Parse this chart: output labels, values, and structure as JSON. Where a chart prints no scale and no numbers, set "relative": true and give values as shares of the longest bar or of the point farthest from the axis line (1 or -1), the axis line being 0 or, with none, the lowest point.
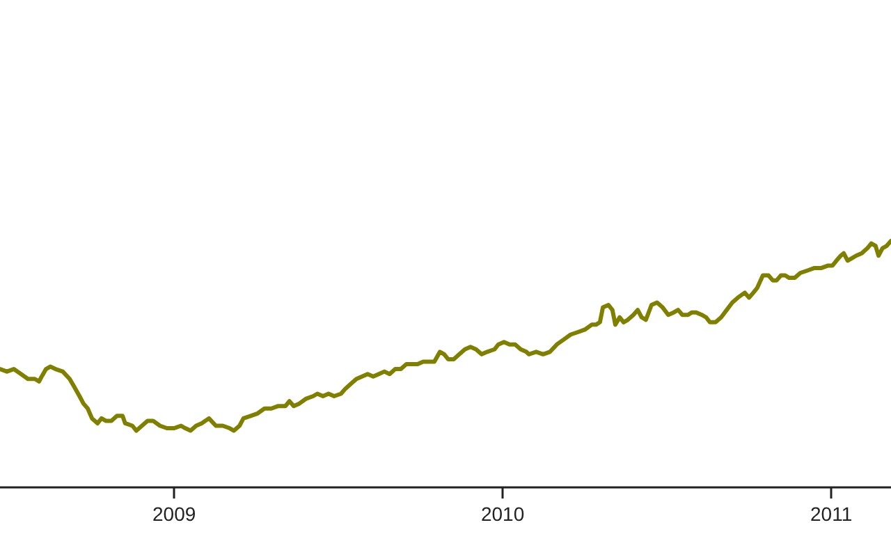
{
  "chart_data": {
    "type": "line",
    "relative": true,
    "xlim": [
      2008.47,
      2011.182
    ],
    "xticks": [
      2009,
      2010,
      2011
    ],
    "grid": false,
    "marker": "none",
    "line_style": "solid",
    "x": [
      2008.47,
      2008.491,
      2008.512,
      2008.534,
      2008.555,
      2008.576,
      2008.589,
      2008.597,
      2008.61,
      2008.623,
      2008.639,
      2008.661,
      2008.682,
      2008.695,
      2008.712,
      2008.724,
      2008.737,
      2008.75,
      2008.767,
      2008.779,
      2008.792,
      2008.809,
      2008.826,
      2008.843,
      2008.851,
      2008.873,
      2008.885,
      2008.902,
      2008.919,
      2008.936,
      2008.957,
      2008.978,
      2009.0,
      2009.021,
      2009.034,
      2009.05,
      2009.067,
      2009.084,
      2009.106,
      2009.127,
      2009.148,
      2009.169,
      2009.182,
      2009.199,
      2009.211,
      2009.233,
      2009.254,
      2009.275,
      2009.296,
      2009.317,
      2009.339,
      2009.351,
      2009.364,
      2009.381,
      2009.402,
      2009.423,
      2009.436,
      2009.453,
      2009.47,
      2009.487,
      2009.508,
      2009.521,
      2009.538,
      2009.555,
      2009.572,
      2009.589,
      2009.606,
      2009.623,
      2009.64,
      2009.656,
      2009.673,
      2009.69,
      2009.707,
      2009.724,
      2009.741,
      2009.758,
      2009.775,
      2009.792,
      2009.809,
      2009.822,
      2009.834,
      2009.851,
      2009.868,
      2009.885,
      2009.902,
      2009.919,
      2009.936,
      2009.953,
      2009.975,
      2009.987,
      2010.004,
      2010.021,
      2010.038,
      2010.055,
      2010.072,
      2010.08,
      2010.102,
      2010.123,
      2010.144,
      2010.165,
      2010.186,
      2010.207,
      2010.229,
      2010.25,
      2010.271,
      2010.284,
      2010.296,
      2010.305,
      2010.322,
      2010.334,
      2010.343,
      2010.356,
      2010.368,
      2010.381,
      2010.398,
      2010.411,
      2010.423,
      2010.436,
      2010.453,
      2010.47,
      2010.487,
      2010.504,
      2010.521,
      2010.534,
      2010.547,
      2010.564,
      2010.576,
      2010.589,
      2010.606,
      2010.619,
      2010.631,
      2010.648,
      2010.665,
      2010.682,
      2010.699,
      2010.716,
      2010.737,
      2010.75,
      2010.763,
      2010.775,
      2010.792,
      2010.809,
      2010.822,
      2010.834,
      2010.847,
      2010.86,
      2010.872,
      2010.889,
      2010.906,
      2010.928,
      2010.949,
      2010.97,
      2010.991,
      2011.004,
      2011.016,
      2011.029,
      2011.038,
      2011.05,
      2011.063,
      2011.076,
      2011.093,
      2011.11,
      2011.122,
      2011.135,
      2011.144,
      2011.156,
      2011.169,
      2011.182
    ],
    "series": [
      {
        "color": "#808000",
        "values": [
          0.48,
          0.47,
          0.48,
          0.46,
          0.44,
          0.44,
          0.43,
          0.45,
          0.48,
          0.49,
          0.48,
          0.47,
          0.44,
          0.41,
          0.37,
          0.34,
          0.32,
          0.28,
          0.26,
          0.28,
          0.27,
          0.27,
          0.29,
          0.29,
          0.26,
          0.25,
          0.23,
          0.25,
          0.27,
          0.27,
          0.25,
          0.24,
          0.24,
          0.25,
          0.24,
          0.23,
          0.25,
          0.26,
          0.28,
          0.25,
          0.25,
          0.24,
          0.23,
          0.25,
          0.28,
          0.29,
          0.3,
          0.32,
          0.32,
          0.33,
          0.33,
          0.35,
          0.33,
          0.34,
          0.36,
          0.37,
          0.38,
          0.37,
          0.38,
          0.37,
          0.38,
          0.4,
          0.42,
          0.44,
          0.45,
          0.46,
          0.45,
          0.46,
          0.47,
          0.46,
          0.48,
          0.48,
          0.5,
          0.5,
          0.5,
          0.51,
          0.51,
          0.51,
          0.55,
          0.54,
          0.52,
          0.52,
          0.54,
          0.56,
          0.57,
          0.56,
          0.54,
          0.55,
          0.56,
          0.58,
          0.59,
          0.58,
          0.58,
          0.56,
          0.55,
          0.54,
          0.55,
          0.54,
          0.55,
          0.58,
          0.6,
          0.62,
          0.63,
          0.64,
          0.66,
          0.66,
          0.67,
          0.73,
          0.74,
          0.72,
          0.66,
          0.69,
          0.67,
          0.68,
          0.7,
          0.72,
          0.69,
          0.68,
          0.74,
          0.75,
          0.73,
          0.7,
          0.71,
          0.72,
          0.7,
          0.7,
          0.71,
          0.71,
          0.7,
          0.69,
          0.67,
          0.67,
          0.69,
          0.72,
          0.75,
          0.77,
          0.79,
          0.77,
          0.79,
          0.81,
          0.86,
          0.86,
          0.84,
          0.84,
          0.86,
          0.86,
          0.85,
          0.85,
          0.87,
          0.88,
          0.89,
          0.89,
          0.9,
          0.9,
          0.92,
          0.94,
          0.95,
          0.92,
          0.93,
          0.94,
          0.95,
          0.97,
          0.99,
          0.98,
          0.94,
          0.97,
          0.98,
          1
        ]
      }
    ]
  }
}
